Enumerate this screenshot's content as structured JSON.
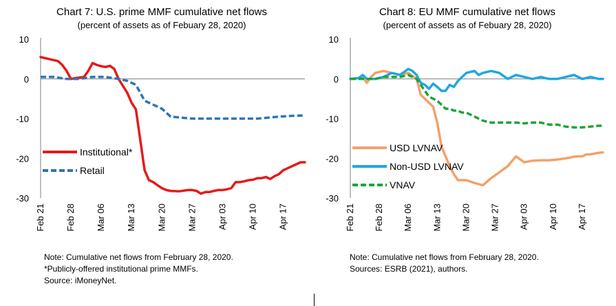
{
  "chart_data": [
    {
      "type": "line",
      "title": "Chart 7: U.S. prime MMF cumulative net flows",
      "subtitle": "(percent of assets as of Febuary 28, 2020)",
      "xlabel": "",
      "ylabel": "",
      "ylim": [
        -30,
        10
      ],
      "yticks": [
        10,
        0,
        -10,
        -20,
        -30
      ],
      "xlim": [
        0,
        61
      ],
      "xtick_values": [
        0,
        7,
        14,
        21,
        28,
        35,
        42,
        49,
        56
      ],
      "xtick_labels": [
        "Feb 21",
        "Feb 28",
        "Mar 06",
        "Mar 13",
        "Mar 20",
        "Mar 27",
        "Apr 03",
        "Apr 10",
        "Apr 17"
      ],
      "x_unit": "days since Feb 21, 2020",
      "grid": false,
      "legend": "bottom-left",
      "series": [
        {
          "name": "Institutional*",
          "color": "#e51a1a",
          "dash": "solid",
          "x": [
            0,
            2,
            4,
            5,
            6,
            7,
            8,
            10,
            11,
            12,
            13,
            14,
            15,
            16,
            17,
            18,
            20,
            21,
            22,
            24,
            25,
            26,
            27,
            28,
            29,
            30,
            32,
            34,
            35,
            36,
            37,
            38,
            39,
            40,
            41,
            42,
            43,
            44,
            45,
            46,
            47,
            48,
            49,
            50,
            51,
            52,
            53,
            54,
            55,
            56,
            57,
            58,
            59,
            60,
            61
          ],
          "y": [
            5.5,
            5,
            4.5,
            3.5,
            2,
            0,
            0.2,
            0.5,
            2,
            4,
            3.5,
            3.2,
            3,
            3.3,
            2.5,
            0,
            -3.5,
            -6,
            -7.7,
            -23,
            -25.5,
            -26,
            -26.8,
            -27.5,
            -28,
            -28.2,
            -28.3,
            -28,
            -28,
            -28.2,
            -28.9,
            -28.5,
            -28.5,
            -28.2,
            -28,
            -28,
            -27.8,
            -27.5,
            -26,
            -26,
            -25.8,
            -25.5,
            -25.4,
            -25,
            -25,
            -24.7,
            -25.2,
            -24.5,
            -24,
            -23,
            -22.5,
            -22,
            -21.5,
            -21,
            -21
          ]
        },
        {
          "name": "Retail",
          "color": "#2e75b6",
          "dash": "dashed",
          "x": [
            0,
            3,
            6,
            9,
            12,
            15,
            18,
            20,
            21,
            22,
            24,
            25,
            26,
            28,
            30,
            35,
            40,
            45,
            50,
            55,
            58,
            61
          ],
          "y": [
            0.5,
            0.5,
            0,
            0,
            0.5,
            0.5,
            0,
            -0.5,
            -1,
            -1.5,
            -5.5,
            -6,
            -6.5,
            -7.5,
            -9.5,
            -10,
            -10,
            -10,
            -10,
            -9.5,
            -9.3,
            -9.2
          ]
        }
      ]
    },
    {
      "type": "line",
      "title": "Chart 8: EU MMF cumulative net flows",
      "subtitle": "(percent of assets as of Febuary 28, 2020)",
      "xlabel": "",
      "ylabel": "",
      "ylim": [
        -30,
        10
      ],
      "yticks": [
        10,
        0,
        -10,
        -20,
        -30
      ],
      "xlim": [
        0,
        61
      ],
      "xtick_values": [
        0,
        7,
        14,
        21,
        28,
        35,
        42,
        49,
        56
      ],
      "xtick_labels": [
        "Feb 21",
        "Feb 28",
        "Mar 06",
        "Mar 13",
        "Mar 20",
        "Mar 27",
        "Apr 03",
        "Apr 10",
        "Apr 17"
      ],
      "x_unit": "days since Feb 21, 2020",
      "grid": false,
      "legend": "bottom-left",
      "series": [
        {
          "name": "USD LVNAV",
          "color": "#f4a06b",
          "dash": "solid",
          "x": [
            0,
            2,
            3,
            4,
            5,
            6,
            8,
            10,
            12,
            14,
            16,
            17,
            18,
            19,
            20,
            21,
            22,
            24,
            25,
            26,
            27,
            28,
            30,
            32,
            34,
            36,
            38,
            40,
            42,
            44,
            46,
            48,
            50,
            52,
            54,
            55,
            56,
            57,
            58,
            59,
            60,
            61
          ],
          "y": [
            0,
            0.2,
            0.5,
            -1,
            0.5,
            1.5,
            2,
            1.5,
            1,
            1.5,
            0,
            -4,
            -5,
            -6,
            -7,
            -11,
            -17,
            -22,
            -24,
            -25.5,
            -25.5,
            -25.5,
            -26.2,
            -26.8,
            -25,
            -23.5,
            -22,
            -19.5,
            -21,
            -20.6,
            -20.5,
            -20.5,
            -20.3,
            -20,
            -19.6,
            -19.5,
            -19.5,
            -19,
            -19,
            -18.8,
            -18.6,
            -18.5
          ]
        },
        {
          "name": "Non-USD LVNAV",
          "color": "#1fa7e1",
          "dash": "solid",
          "x": [
            0,
            2,
            3,
            4,
            6,
            8,
            10,
            12,
            14,
            15,
            16,
            17,
            18,
            19,
            20,
            21,
            22,
            23,
            24,
            25,
            26,
            27,
            28,
            30,
            31,
            32,
            34,
            36,
            38,
            40,
            42,
            44,
            46,
            48,
            50,
            52,
            54,
            56,
            58,
            60,
            61
          ],
          "y": [
            0,
            0.2,
            1,
            0,
            0,
            0.5,
            1.5,
            1,
            2.5,
            2,
            1,
            -1,
            -1.5,
            -2.5,
            -1.2,
            -2,
            -3,
            -3,
            -1.5,
            -2,
            -0.5,
            0.5,
            1.5,
            2,
            1,
            1.5,
            2,
            1.5,
            0,
            1,
            0.5,
            0,
            0.5,
            0,
            0,
            0.5,
            1,
            0,
            0.5,
            0,
            0
          ]
        },
        {
          "name": "VNAV",
          "color": "#1aa53a",
          "dash": "dashed",
          "x": [
            0,
            2,
            4,
            6,
            8,
            10,
            12,
            14,
            16,
            17,
            18,
            19,
            20,
            21,
            22,
            23,
            24,
            25,
            26,
            27,
            28,
            30,
            32,
            34,
            36,
            38,
            40,
            42,
            44,
            46,
            48,
            50,
            52,
            54,
            56,
            58,
            60,
            61
          ],
          "y": [
            0,
            0,
            0,
            0,
            0.5,
            0.5,
            0.5,
            1,
            0,
            -1.5,
            -3,
            -4.5,
            -5,
            -5.5,
            -6.5,
            -7.5,
            -7.5,
            -8,
            -8,
            -8.5,
            -8.5,
            -9.5,
            -10.5,
            -11,
            -11,
            -11,
            -11,
            -11.2,
            -11,
            -11,
            -11.5,
            -11.5,
            -12,
            -12.2,
            -12.2,
            -12,
            -11.8,
            -11.8
          ]
        }
      ]
    }
  ],
  "notes": {
    "chart7": {
      "line1": "Note: Cumulative net flows from February 28, 2020.",
      "line2": "*Publicly-offered institutional prime MMFs.",
      "line3": "Source:  iMoneyNet."
    },
    "chart8": {
      "line1": "Note: Cumulative net flows from February 28, 2020.",
      "line2": "Sources: ESRB (2021), authors."
    }
  }
}
